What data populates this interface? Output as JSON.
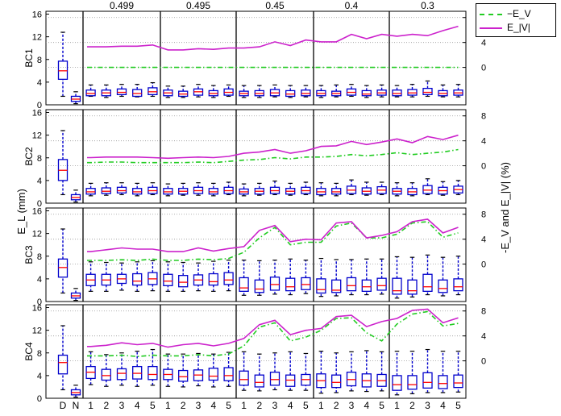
{
  "chart_data": {
    "type": "box",
    "shared": {
      "ylabel": "E_L (mm)",
      "y2label": "-E_V and E_|V| (%)",
      "ylim": [
        0,
        16.5
      ],
      "yticks": [
        0,
        4,
        8,
        12,
        16
      ],
      "y2lim": [
        -6,
        9
      ],
      "y2ticks": [
        0,
        4,
        8
      ],
      "group_labels": [
        "0.499",
        "0.495",
        "0.45",
        "0.4",
        "0.3"
      ],
      "xtick_labels": [
        "D",
        "N",
        "1",
        "2",
        "3",
        "4",
        "5",
        "1",
        "2",
        "3",
        "4",
        "5",
        "1",
        "2",
        "3",
        "4",
        "5",
        "1",
        "2",
        "3",
        "4",
        "5",
        "1",
        "2",
        "3",
        "4",
        "5"
      ],
      "legend": [
        {
          "label": "−E_V",
          "color": "#22cc22",
          "style": "dash-dot"
        },
        {
          "label": "E_|V|",
          "color": "#cc22cc",
          "style": "solid"
        }
      ],
      "box_color": "#0000cc",
      "median_color": "#ff0000"
    },
    "panels": [
      {
        "name": "BC1",
        "ref_boxes": [
          {
            "label": "D",
            "whisker_low": 1.5,
            "q1": 4.5,
            "median": 6.0,
            "q3": 7.7,
            "whisker_high": 12.8
          },
          {
            "label": "N",
            "whisker_low": 0.2,
            "q1": 0.6,
            "median": 1.0,
            "q3": 1.5,
            "whisker_high": 2.3
          }
        ],
        "boxes": [
          [
            1.5,
            1.6,
            2.0,
            2.6,
            3.5
          ],
          [
            1.3,
            1.6,
            2.1,
            2.6,
            3.5
          ],
          [
            1.5,
            1.8,
            2.2,
            2.8,
            3.6
          ],
          [
            1.4,
            1.5,
            2.0,
            2.7,
            3.6
          ],
          [
            1.5,
            1.8,
            2.3,
            3.0,
            3.9
          ],
          [
            1.3,
            1.6,
            2.1,
            2.6,
            3.3
          ],
          [
            1.3,
            1.5,
            1.9,
            2.4,
            3.3
          ],
          [
            1.4,
            1.7,
            2.3,
            2.8,
            3.6
          ],
          [
            1.3,
            1.6,
            2.0,
            2.5,
            3.4
          ],
          [
            1.5,
            1.7,
            2.2,
            2.8,
            3.5
          ],
          [
            1.3,
            1.6,
            2.0,
            2.4,
            3.4
          ],
          [
            1.3,
            1.6,
            2.0,
            2.5,
            3.4
          ],
          [
            1.4,
            1.6,
            2.1,
            2.7,
            3.5
          ],
          [
            1.3,
            1.5,
            1.9,
            2.5,
            3.4
          ],
          [
            1.4,
            1.6,
            2.0,
            2.6,
            3.4
          ],
          [
            1.3,
            1.6,
            2.0,
            2.5,
            3.4
          ],
          [
            1.4,
            1.6,
            2.0,
            2.4,
            3.5
          ],
          [
            1.5,
            1.7,
            2.2,
            2.8,
            3.6
          ],
          [
            1.3,
            1.6,
            1.9,
            2.5,
            3.4
          ],
          [
            1.4,
            1.7,
            2.1,
            2.6,
            3.5
          ],
          [
            1.4,
            1.6,
            2.0,
            2.6,
            3.4
          ],
          [
            1.4,
            1.7,
            2.1,
            2.7,
            3.6
          ],
          [
            1.5,
            1.8,
            2.2,
            2.9,
            4.2
          ],
          [
            1.4,
            1.6,
            2.0,
            2.5,
            3.5
          ],
          [
            1.4,
            1.7,
            2.1,
            2.6,
            3.6
          ]
        ],
        "neg_EV": [
          0,
          0,
          0,
          0,
          0,
          0,
          0,
          0,
          0,
          0,
          0,
          0,
          0,
          0,
          0,
          0,
          0,
          0,
          0,
          0,
          0,
          0,
          0,
          0,
          0
        ],
        "E_absV": [
          3.3,
          3.3,
          3.4,
          3.4,
          3.6,
          2.8,
          2.8,
          3.0,
          2.9,
          3.1,
          3.1,
          3.3,
          4.1,
          3.5,
          4.4,
          4.1,
          4.1,
          5.3,
          4.6,
          5.3,
          5.0,
          5.3,
          5.1,
          5.9,
          6.6
        ]
      },
      {
        "name": "BC2",
        "ref_boxes": [
          {
            "label": "D",
            "whisker_low": 1.5,
            "q1": 4.0,
            "median": 5.8,
            "q3": 7.7,
            "whisker_high": 12.8
          },
          {
            "label": "N",
            "whisker_low": 0.2,
            "q1": 0.6,
            "median": 1.0,
            "q3": 1.5,
            "whisker_high": 2.3
          }
        ],
        "boxes": [
          [
            1.3,
            1.6,
            2.0,
            2.6,
            3.5
          ],
          [
            1.4,
            1.7,
            2.1,
            2.7,
            3.6
          ],
          [
            1.5,
            1.8,
            2.2,
            2.8,
            3.6
          ],
          [
            1.3,
            1.6,
            2.0,
            2.6,
            3.5
          ],
          [
            1.5,
            1.7,
            2.2,
            2.8,
            3.6
          ],
          [
            1.3,
            1.6,
            2.0,
            2.6,
            3.4
          ],
          [
            1.4,
            1.6,
            2.1,
            2.6,
            3.5
          ],
          [
            1.4,
            1.7,
            2.2,
            2.8,
            3.6
          ],
          [
            1.3,
            1.6,
            2.0,
            2.6,
            3.5
          ],
          [
            1.5,
            1.7,
            2.2,
            2.8,
            3.7
          ],
          [
            1.3,
            1.6,
            2.0,
            2.5,
            3.4
          ],
          [
            1.4,
            1.6,
            2.1,
            2.6,
            3.5
          ],
          [
            1.5,
            1.7,
            2.2,
            2.8,
            3.9
          ],
          [
            1.4,
            1.6,
            2.1,
            2.6,
            3.5
          ],
          [
            1.5,
            1.7,
            2.2,
            2.8,
            3.7
          ],
          [
            1.3,
            1.5,
            2.0,
            2.6,
            3.6
          ],
          [
            1.3,
            1.6,
            2.0,
            2.6,
            3.5
          ],
          [
            1.5,
            1.7,
            2.3,
            3.0,
            4.1
          ],
          [
            1.4,
            1.6,
            2.1,
            2.7,
            3.7
          ],
          [
            1.5,
            1.7,
            2.3,
            2.9,
            3.7
          ],
          [
            1.3,
            1.6,
            2.1,
            2.6,
            3.6
          ],
          [
            1.3,
            1.5,
            2.0,
            2.6,
            3.6
          ],
          [
            1.5,
            1.7,
            2.3,
            3.1,
            4.3
          ],
          [
            1.4,
            1.6,
            2.2,
            2.8,
            3.8
          ],
          [
            1.5,
            1.8,
            2.4,
            3.0,
            4.0
          ]
        ],
        "neg_EV": [
          0.5,
          0.6,
          0.6,
          0.5,
          0.5,
          0.5,
          0.5,
          0.6,
          0.5,
          0.7,
          0.9,
          1.0,
          1.3,
          1.1,
          1.4,
          1.4,
          1.5,
          1.8,
          1.6,
          1.8,
          2.1,
          1.8,
          2.0,
          2.2,
          2.6
        ],
        "E_absV": [
          1.3,
          1.4,
          1.4,
          1.4,
          1.3,
          1.2,
          1.3,
          1.4,
          1.3,
          1.5,
          2.0,
          2.2,
          2.6,
          2.0,
          2.4,
          3.1,
          3.2,
          3.9,
          3.4,
          3.8,
          4.3,
          3.7,
          4.7,
          4.2,
          4.9
        ]
      },
      {
        "name": "BC3",
        "ref_boxes": [
          {
            "label": "D",
            "whisker_low": 1.5,
            "q1": 4.3,
            "median": 6.0,
            "q3": 7.5,
            "whisker_high": 12.8
          },
          {
            "label": "N",
            "whisker_low": 0.2,
            "q1": 0.6,
            "median": 1.0,
            "q3": 1.5,
            "whisker_high": 2.3
          }
        ],
        "boxes": [
          [
            1.8,
            2.8,
            3.8,
            4.8,
            7.0
          ],
          [
            1.8,
            2.9,
            3.8,
            4.8,
            6.9
          ],
          [
            2.0,
            3.2,
            4.0,
            4.8,
            6.8
          ],
          [
            1.8,
            2.9,
            3.6,
            4.9,
            7.0
          ],
          [
            1.9,
            3.0,
            4.0,
            5.1,
            7.2
          ],
          [
            1.8,
            2.8,
            3.6,
            4.8,
            7.0
          ],
          [
            1.8,
            2.6,
            3.4,
            4.6,
            6.9
          ],
          [
            1.9,
            2.9,
            3.8,
            4.7,
            6.8
          ],
          [
            1.8,
            2.9,
            3.5,
            4.9,
            7.1
          ],
          [
            1.9,
            3.0,
            3.8,
            5.1,
            7.3
          ],
          [
            1.1,
            1.8,
            2.4,
            4.2,
            7.3
          ],
          [
            1.1,
            1.6,
            2.2,
            3.8,
            7.2
          ],
          [
            1.3,
            2.0,
            3.0,
            4.3,
            7.3
          ],
          [
            1.2,
            1.9,
            2.6,
            4.1,
            7.5
          ],
          [
            1.4,
            2.1,
            3.0,
            4.2,
            7.3
          ],
          [
            0.9,
            1.5,
            2.1,
            4.0,
            7.6
          ],
          [
            1.0,
            1.6,
            2.0,
            3.8,
            7.4
          ],
          [
            1.2,
            1.9,
            2.8,
            4.2,
            7.4
          ],
          [
            1.2,
            1.8,
            2.6,
            3.8,
            7.5
          ],
          [
            1.3,
            2.0,
            2.8,
            4.1,
            7.5
          ],
          [
            0.6,
            1.3,
            1.9,
            4.1,
            7.9
          ],
          [
            0.8,
            1.3,
            1.9,
            3.8,
            7.8
          ],
          [
            1.2,
            1.8,
            2.6,
            4.8,
            8.2
          ],
          [
            1.0,
            1.6,
            2.3,
            3.8,
            7.8
          ],
          [
            1.2,
            1.9,
            2.6,
            4.0,
            8.0
          ]
        ],
        "neg_EV": [
          0.6,
          0.6,
          0.7,
          0.6,
          0.8,
          0.6,
          0.6,
          0.8,
          0.7,
          0.9,
          1.9,
          4.2,
          5.9,
          3.1,
          3.5,
          3.5,
          6.1,
          6.6,
          4.2,
          4.2,
          4.8,
          6.6,
          6.8,
          4.3,
          5.0
        ],
        "E_absV": [
          2.0,
          2.3,
          2.6,
          2.4,
          2.4,
          2.0,
          2.0,
          2.6,
          2.1,
          2.5,
          2.8,
          5.4,
          6.2,
          3.6,
          4.0,
          3.9,
          6.6,
          6.8,
          4.2,
          4.6,
          5.2,
          6.8,
          7.2,
          5.0,
          5.9
        ]
      },
      {
        "name": "BC4",
        "ref_boxes": [
          {
            "label": "D",
            "whisker_low": 1.5,
            "q1": 4.3,
            "median": 6.3,
            "q3": 7.6,
            "whisker_high": 12.8
          },
          {
            "label": "N",
            "whisker_low": 0.2,
            "q1": 0.6,
            "median": 1.0,
            "q3": 1.5,
            "whisker_high": 2.3
          }
        ],
        "boxes": [
          [
            2.4,
            3.5,
            4.6,
            5.6,
            8.2
          ],
          [
            2.1,
            3.2,
            4.0,
            5.1,
            7.7
          ],
          [
            2.3,
            3.3,
            4.4,
            5.2,
            8.0
          ],
          [
            2.1,
            3.4,
            4.4,
            5.6,
            8.3
          ],
          [
            2.3,
            3.3,
            4.2,
            5.6,
            8.6
          ],
          [
            2.1,
            3.3,
            4.2,
            5.1,
            7.8
          ],
          [
            2.0,
            3.0,
            3.8,
            4.9,
            7.8
          ],
          [
            2.2,
            3.1,
            4.1,
            5.0,
            7.9
          ],
          [
            2.0,
            3.2,
            3.9,
            5.3,
            7.8
          ],
          [
            2.1,
            3.1,
            4.0,
            5.4,
            8.1
          ],
          [
            1.4,
            2.3,
            3.3,
            4.8,
            8.2
          ],
          [
            1.3,
            2.0,
            2.8,
            4.1,
            7.8
          ],
          [
            1.5,
            2.3,
            3.3,
            4.6,
            8.0
          ],
          [
            1.4,
            2.1,
            3.2,
            4.1,
            8.2
          ],
          [
            1.4,
            2.3,
            3.3,
            4.2,
            7.9
          ],
          [
            0.9,
            1.9,
            3.1,
            4.3,
            8.3
          ],
          [
            1.0,
            1.9,
            2.8,
            4.1,
            8.0
          ],
          [
            1.3,
            2.2,
            3.3,
            4.6,
            8.2
          ],
          [
            1.2,
            2.0,
            3.1,
            4.3,
            8.4
          ],
          [
            1.3,
            2.1,
            3.1,
            4.2,
            8.2
          ],
          [
            0.6,
            1.4,
            2.4,
            4.0,
            8.3
          ],
          [
            0.8,
            1.6,
            2.4,
            4.0,
            8.3
          ],
          [
            1.0,
            1.8,
            2.8,
            4.5,
            8.6
          ],
          [
            1.0,
            1.7,
            2.6,
            4.0,
            8.3
          ],
          [
            1.1,
            1.9,
            2.7,
            4.1,
            8.3
          ]
        ],
        "neg_EV": [
          0.8,
          0.8,
          0.9,
          0.7,
          0.9,
          0.8,
          0.8,
          1.0,
          0.8,
          1.1,
          2.4,
          5.4,
          6.1,
          3.2,
          3.8,
          4.9,
          6.8,
          6.9,
          4.5,
          3.2,
          5.9,
          7.5,
          7.9,
          5.6,
          6.0
        ],
        "E_absV": [
          2.3,
          2.5,
          2.9,
          2.6,
          2.8,
          2.2,
          2.6,
          2.8,
          2.4,
          2.8,
          3.6,
          5.8,
          6.5,
          4.2,
          4.9,
          5.2,
          7.1,
          7.3,
          5.5,
          6.3,
          6.8,
          8.1,
          8.3,
          6.1,
          6.9
        ]
      }
    ]
  }
}
